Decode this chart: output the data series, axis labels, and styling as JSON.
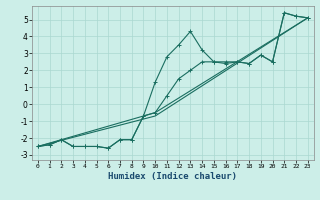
{
  "xlabel": "Humidex (Indice chaleur)",
  "bg_color": "#cceee8",
  "grid_color": "#aad8d0",
  "line_color": "#1a6e60",
  "xlim": [
    -0.5,
    23.5
  ],
  "ylim": [
    -3.3,
    5.8
  ],
  "yticks": [
    -3,
    -2,
    -1,
    0,
    1,
    2,
    3,
    4,
    5
  ],
  "xticks": [
    0,
    1,
    2,
    3,
    4,
    5,
    6,
    7,
    8,
    9,
    10,
    11,
    12,
    13,
    14,
    15,
    16,
    17,
    18,
    19,
    20,
    21,
    22,
    23
  ],
  "line1_x": [
    0,
    1,
    2,
    3,
    4,
    5,
    6,
    7,
    8,
    9,
    10,
    11,
    12,
    13,
    14,
    15,
    16,
    17,
    18,
    19,
    20,
    21,
    22,
    23
  ],
  "line1_y": [
    -2.5,
    -2.4,
    -2.1,
    -2.5,
    -2.5,
    -2.5,
    -2.6,
    -2.1,
    -2.1,
    -0.7,
    1.3,
    2.8,
    3.5,
    4.3,
    3.2,
    2.5,
    2.4,
    2.5,
    2.4,
    2.9,
    2.5,
    5.4,
    5.2,
    5.1
  ],
  "line2_x": [
    0,
    1,
    2,
    3,
    4,
    5,
    6,
    7,
    8,
    9,
    10,
    11,
    12,
    13,
    14,
    15,
    16,
    17,
    18,
    19,
    20,
    21,
    22,
    23
  ],
  "line2_y": [
    -2.5,
    -2.4,
    -2.1,
    -2.5,
    -2.5,
    -2.5,
    -2.6,
    -2.1,
    -2.1,
    -0.7,
    -0.5,
    0.5,
    1.5,
    2.0,
    2.5,
    2.5,
    2.5,
    2.5,
    2.4,
    2.9,
    2.5,
    5.4,
    5.2,
    5.1
  ],
  "line3_x": [
    0,
    10,
    23
  ],
  "line3_y": [
    -2.5,
    -0.5,
    5.1
  ],
  "line4_x": [
    0,
    10,
    23
  ],
  "line4_y": [
    -2.5,
    -0.7,
    5.1
  ]
}
